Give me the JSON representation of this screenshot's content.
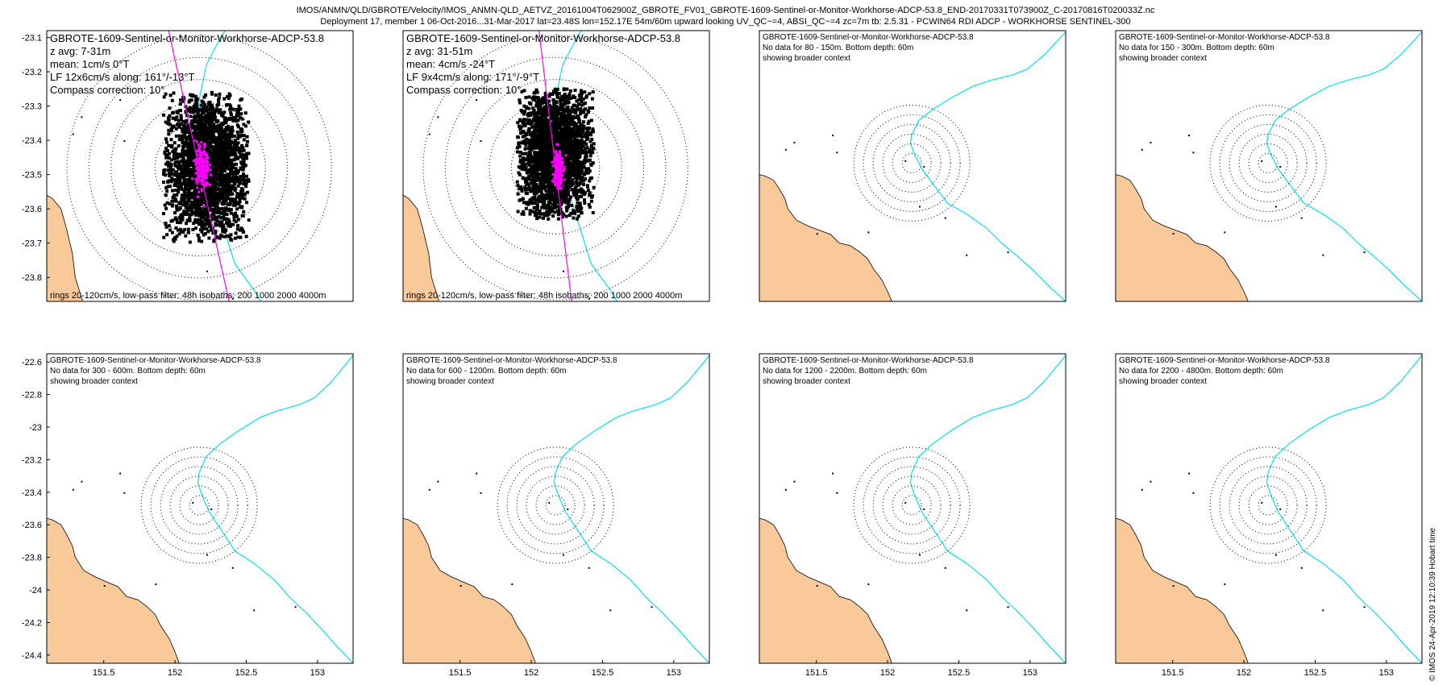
{
  "header": {
    "line1": "IMOS/ANMN/QLD/GBROTE/Velocity/IMOS_ANMN-QLD_AETVZ_20161004T062900Z_GBROTE_FV01_GBROTE-1609-Sentinel-or-Monitor-Workhorse-ADCP-53.8_END-20170331T073900Z_C-20170816T020033Z.nc",
    "line2": "Deployment 17, member 1 06-Oct-2016...31-Mar-2017 lat=23.48S lon=152.17E 54m/60m upward looking UV_QC~=4, ABSI_QC~=4 zc=7m tb: 2.5.31 - PCWIN64 RDI ADCP - WORKHORSE SENTINEL-300"
  },
  "credit": "© IMOS 24-Apr-2019 12:10:39 Hobart time",
  "colors": {
    "land": "#f9c99a",
    "isobath": "#00e5ee",
    "lowpass": "#ff00ff",
    "scatter": "#000000",
    "rings": "#000000"
  },
  "chart_data": [
    {
      "type": "scatter",
      "panel": "1",
      "title": "GBROTE-1609-Sentinel-or-Monitor-Workhorse-ADCP-53.8",
      "text_lines": [
        "z avg: 7-31m",
        "mean: 1cm/s 0°T",
        "LF 12x6cm/s along: 161°/-13°T",
        "Compass correction: 10°"
      ],
      "footer": "rings 20-120cm/s, low-pass filter: 48h isobaths: 200 1000 2000 4000m",
      "xlim": [
        151.1,
        153.25
      ],
      "ylim": [
        -23.87,
        -23.08
      ],
      "yticks": [
        -23.1,
        -23.2,
        -23.3,
        -23.4,
        -23.5,
        -23.6,
        -23.7,
        -23.8
      ],
      "center": [
        152.17,
        -23.48
      ],
      "velocity_rings_cm_s": [
        20,
        40,
        60,
        80,
        100,
        120
      ],
      "cloud_spread": [
        0.3,
        0.22
      ],
      "cloud_center": [
        152.22,
        -23.48
      ],
      "lowpass_spread": [
        0.06,
        0.06
      ]
    },
    {
      "type": "scatter",
      "panel": "2",
      "title": "GBROTE-1609-Sentinel-or-Monitor-Workhorse-ADCP-53.8",
      "text_lines": [
        "z avg: 31-51m",
        "mean: 4cm/s -24°T",
        "LF 9x4cm/s along: 171°/-9°T",
        "Compass correction: 10°"
      ],
      "footer": "rings 20-120cm/s, low-pass filter: 48h isobaths: 200 1000 2000 4000m",
      "xlim": [
        151.1,
        153.25
      ],
      "ylim": [
        -23.87,
        -23.08
      ],
      "center": [
        152.17,
        -23.48
      ],
      "velocity_rings_cm_s": [
        20,
        40,
        60,
        80,
        100,
        120
      ],
      "cloud_spread": [
        0.27,
        0.19
      ],
      "cloud_center": [
        152.17,
        -23.44
      ],
      "lowpass_spread": [
        0.04,
        0.05
      ]
    },
    {
      "type": "map",
      "panel": "3",
      "title": "GBROTE-1609-Sentinel-or-Monitor-Workhorse-ADCP-53.8",
      "text_lines": [
        "No data for 80 - 150m. Bottom depth: 60m",
        "showing broader context"
      ],
      "xlim": [
        151.1,
        153.25
      ],
      "ylim": [
        -24.45,
        -22.55
      ],
      "center": [
        152.17,
        -23.48
      ]
    },
    {
      "type": "map",
      "panel": "4",
      "title": "GBROTE-1609-Sentinel-or-Monitor-Workhorse-ADCP-53.8",
      "text_lines": [
        "No data for 150 - 300m. Bottom depth: 60m",
        "showing broader context"
      ],
      "xlim": [
        151.1,
        153.25
      ],
      "ylim": [
        -24.45,
        -22.55
      ],
      "center": [
        152.17,
        -23.48
      ]
    },
    {
      "type": "map",
      "panel": "5",
      "title": "GBROTE-1609-Sentinel-or-Monitor-Workhorse-ADCP-53.8",
      "text_lines": [
        "No data for 300 - 600m. Bottom depth: 60m",
        "showing broader context"
      ],
      "xlim": [
        151.1,
        153.25
      ],
      "ylim": [
        -24.45,
        -22.55
      ],
      "yticks": [
        -22.6,
        -22.8,
        -23,
        -23.2,
        -23.4,
        -23.6,
        -23.8,
        -24,
        -24.2,
        -24.4
      ],
      "xticks": [
        151.5,
        152,
        152.5,
        153
      ],
      "center": [
        152.17,
        -23.48
      ]
    },
    {
      "type": "map",
      "panel": "6",
      "title": "GBROTE-1609-Sentinel-or-Monitor-Workhorse-ADCP-53.8",
      "text_lines": [
        "No data for 600 - 1200m. Bottom depth: 60m",
        "showing broader context"
      ],
      "xlim": [
        151.1,
        153.25
      ],
      "ylim": [
        -24.45,
        -22.55
      ],
      "xticks": [
        151.5,
        152,
        152.5,
        153
      ],
      "center": [
        152.17,
        -23.48
      ]
    },
    {
      "type": "map",
      "panel": "7",
      "title": "GBROTE-1609-Sentinel-or-Monitor-Workhorse-ADCP-53.8",
      "text_lines": [
        "No data for 1200 - 2200m. Bottom depth: 60m",
        "showing broader context"
      ],
      "xlim": [
        151.1,
        153.25
      ],
      "ylim": [
        -24.45,
        -22.55
      ],
      "xticks": [
        151.5,
        152,
        152.5,
        153
      ],
      "center": [
        152.17,
        -23.48
      ]
    },
    {
      "type": "map",
      "panel": "8",
      "title": "GBROTE-1609-Sentinel-or-Monitor-Workhorse-ADCP-53.8",
      "text_lines": [
        "No data for 2200 - 4800m. Bottom depth: 60m",
        "showing broader context"
      ],
      "xlim": [
        151.1,
        153.25
      ],
      "ylim": [
        -24.45,
        -22.55
      ],
      "xticks": [
        151.5,
        152,
        152.5,
        153
      ],
      "center": [
        152.17,
        -23.48
      ]
    }
  ]
}
